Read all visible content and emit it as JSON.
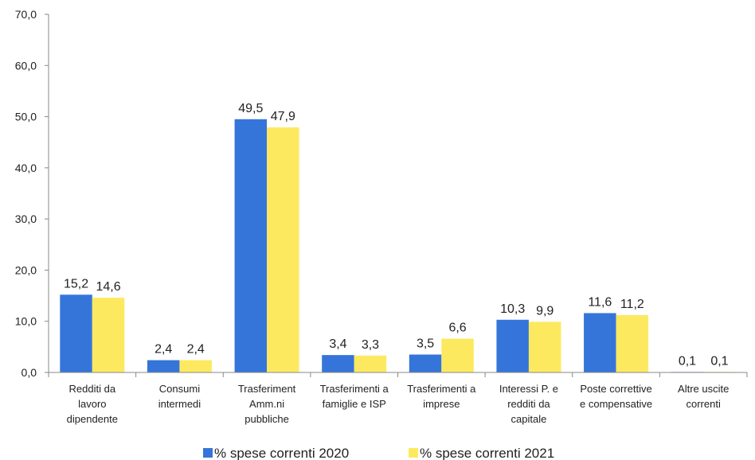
{
  "chart_data": {
    "type": "bar",
    "title": "",
    "xlabel": "",
    "ylabel": "",
    "ylim": [
      0,
      70
    ],
    "yticks": [
      "0,0",
      "10,0",
      "20,0",
      "30,0",
      "40,0",
      "50,0",
      "60,0",
      "70,0"
    ],
    "grid": false,
    "legend_position": "bottom",
    "categories": [
      [
        "Redditi da",
        "lavoro",
        "dipendente"
      ],
      [
        "Consumi",
        "intermedi"
      ],
      [
        "Trasferiment",
        "Amm.ni",
        "pubbliche"
      ],
      [
        "Trasferimenti a",
        "famiglie e ISP"
      ],
      [
        "Trasferimenti a",
        "imprese"
      ],
      [
        "Interessi P. e",
        "redditi da",
        "capitale"
      ],
      [
        "Poste correttive",
        "e compensative"
      ],
      [
        "Altre uscite",
        "correnti"
      ]
    ],
    "series": [
      {
        "name": "% spese correnti 2020",
        "color": "#3575d9",
        "values": [
          15.2,
          2.4,
          49.5,
          3.4,
          3.5,
          10.3,
          11.6,
          0.1
        ],
        "labels": [
          "15,2",
          "2,4",
          "49,5",
          "3,4",
          "3,5",
          "10,3",
          "11,6",
          "0,1"
        ]
      },
      {
        "name": "% spese correnti 2021",
        "color": "#fde95f",
        "values": [
          14.6,
          2.4,
          47.9,
          3.3,
          6.6,
          9.9,
          11.2,
          0.1
        ],
        "labels": [
          "14,6",
          "2,4",
          "47,9",
          "3,3",
          "6,6",
          "9,9",
          "11,2",
          "0,1"
        ]
      }
    ]
  }
}
